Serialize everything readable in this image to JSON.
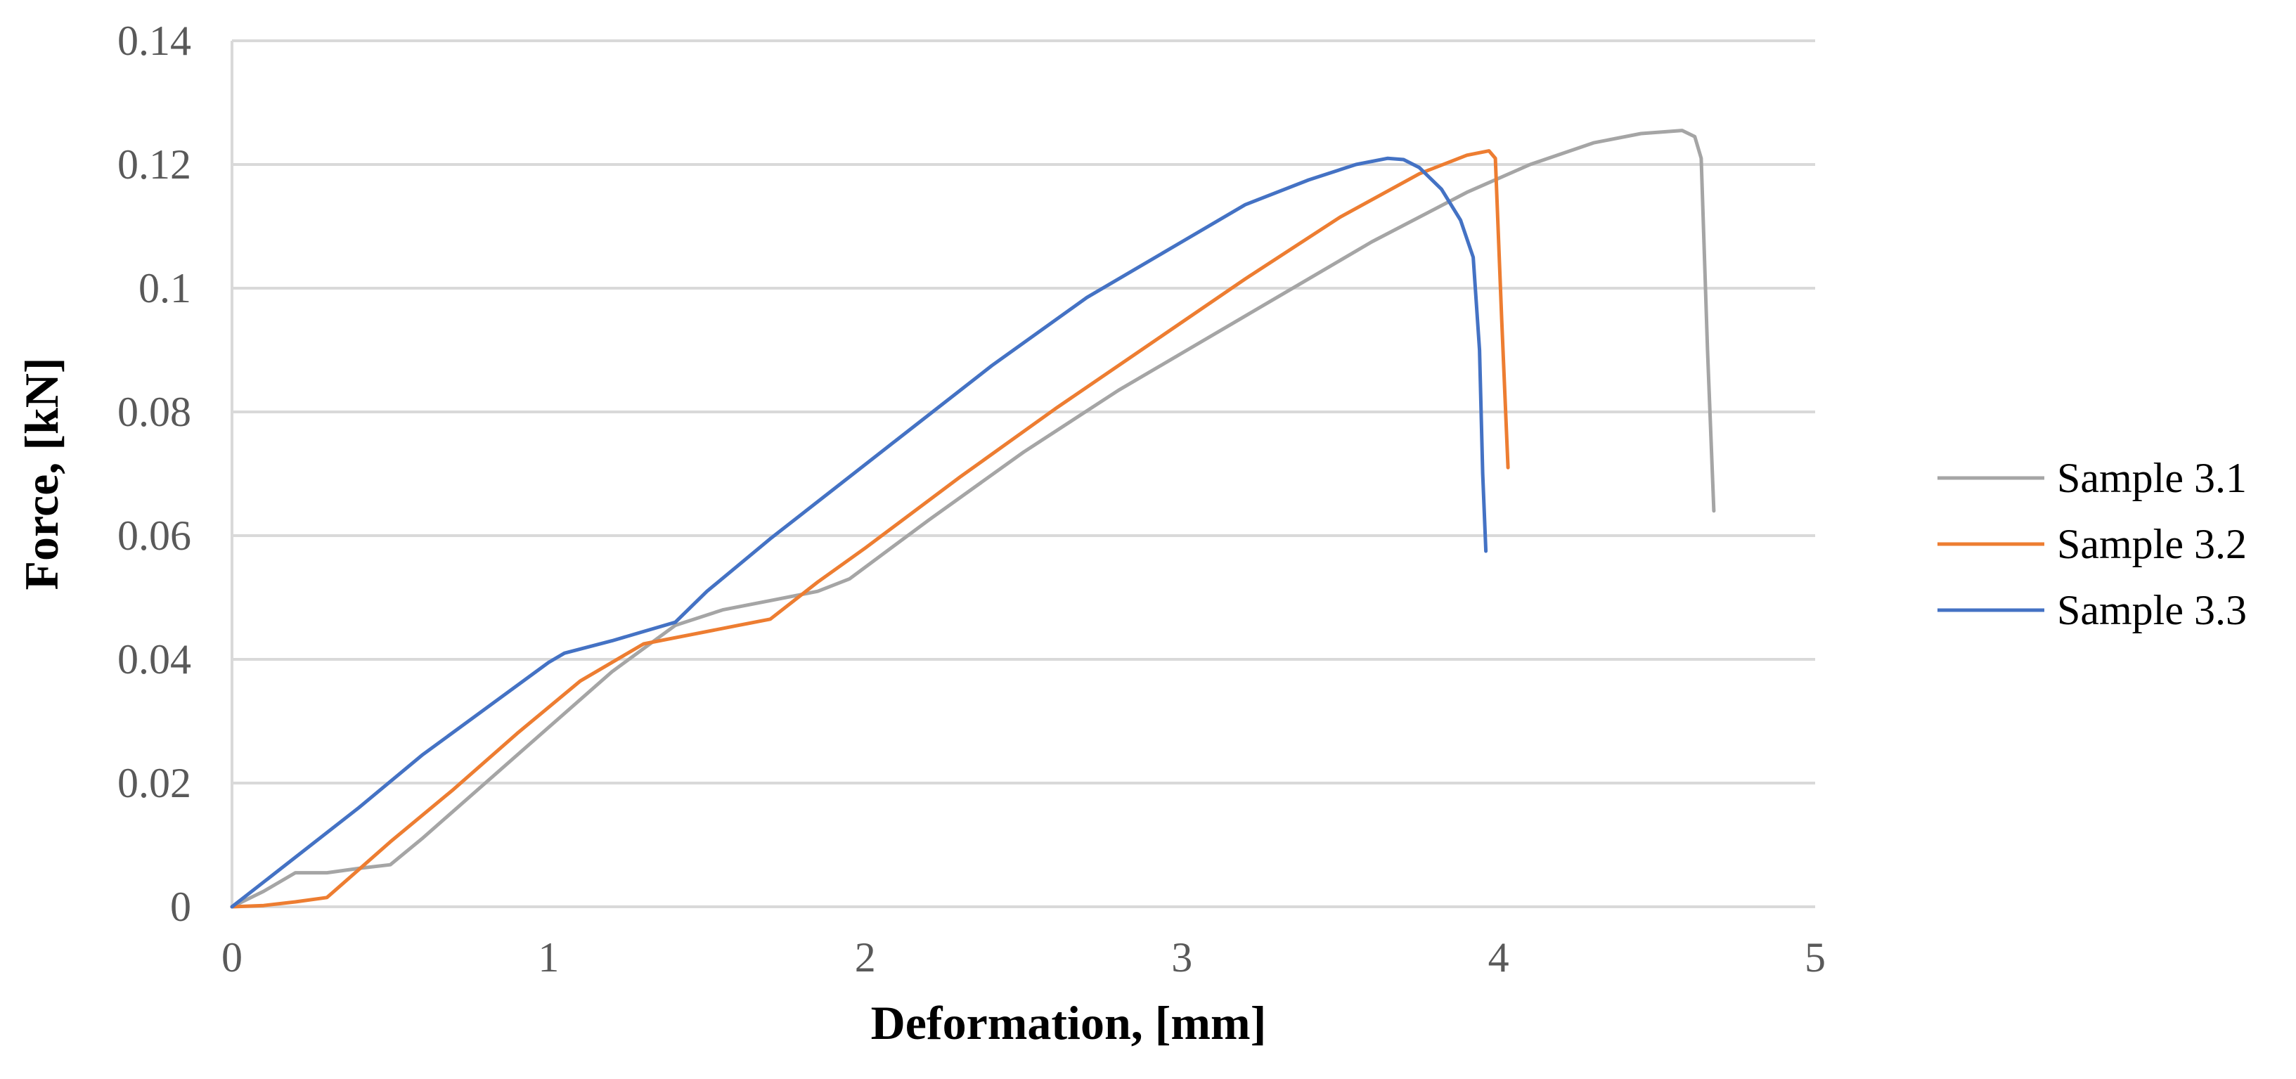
{
  "chart_data": {
    "type": "line",
    "xlabel": "Deformation, [mm]",
    "ylabel": "Force, [kN]",
    "xlim": [
      0,
      5
    ],
    "ylim": [
      0,
      0.14
    ],
    "x_ticks": [
      "0",
      "1",
      "2",
      "3",
      "4",
      "5"
    ],
    "y_ticks": [
      "0",
      "0.02",
      "0.04",
      "0.06",
      "0.08",
      "0.1",
      "0.12",
      "0.14"
    ],
    "grid": "horizontal",
    "legend_position": "right",
    "series": [
      {
        "name": "Sample 3.1",
        "color": "#a5a5a5",
        "x": [
          0,
          0.1,
          0.2,
          0.3,
          0.4,
          0.5,
          0.6,
          0.8,
          1.0,
          1.2,
          1.4,
          1.55,
          1.7,
          1.85,
          1.95,
          2.2,
          2.5,
          2.8,
          3.0,
          3.3,
          3.6,
          3.9,
          4.1,
          4.3,
          4.45,
          4.58,
          4.62,
          4.64,
          4.66,
          4.68
        ],
        "y": [
          0,
          0.0025,
          0.0055,
          0.0055,
          0.0062,
          0.0068,
          0.011,
          0.02,
          0.029,
          0.038,
          0.0455,
          0.048,
          0.0495,
          0.051,
          0.053,
          0.0625,
          0.0735,
          0.0835,
          0.0895,
          0.0985,
          0.1075,
          0.1155,
          0.12,
          0.1235,
          0.125,
          0.1255,
          0.1245,
          0.121,
          0.09,
          0.064
        ]
      },
      {
        "name": "Sample 3.2",
        "color": "#ed7d31",
        "x": [
          0,
          0.1,
          0.2,
          0.3,
          0.4,
          0.5,
          0.7,
          0.9,
          1.1,
          1.3,
          1.45,
          1.6,
          1.7,
          1.85,
          2.0,
          2.3,
          2.6,
          2.9,
          3.2,
          3.5,
          3.75,
          3.9,
          3.97,
          3.99,
          4.01,
          4.03
        ],
        "y": [
          0,
          0.0002,
          0.0008,
          0.0015,
          0.006,
          0.0105,
          0.019,
          0.028,
          0.0365,
          0.0425,
          0.044,
          0.0455,
          0.0465,
          0.0525,
          0.058,
          0.0695,
          0.0805,
          0.091,
          0.1015,
          0.1115,
          0.1185,
          0.1215,
          0.1222,
          0.121,
          0.095,
          0.071
        ]
      },
      {
        "name": "Sample 3.3",
        "color": "#4472c4",
        "x": [
          0,
          0.2,
          0.4,
          0.6,
          0.8,
          1.0,
          1.05,
          1.2,
          1.3,
          1.4,
          1.5,
          1.7,
          1.9,
          2.1,
          2.4,
          2.7,
          3.0,
          3.2,
          3.4,
          3.55,
          3.65,
          3.7,
          3.75,
          3.82,
          3.88,
          3.92,
          3.94,
          3.95,
          3.96
        ],
        "y": [
          0,
          0.008,
          0.016,
          0.0245,
          0.032,
          0.0395,
          0.041,
          0.043,
          0.0445,
          0.046,
          0.051,
          0.0595,
          0.0675,
          0.0755,
          0.0875,
          0.0985,
          0.1075,
          0.1135,
          0.1175,
          0.12,
          0.121,
          0.1208,
          0.1195,
          0.116,
          0.111,
          0.105,
          0.09,
          0.07,
          0.0575
        ]
      }
    ]
  }
}
